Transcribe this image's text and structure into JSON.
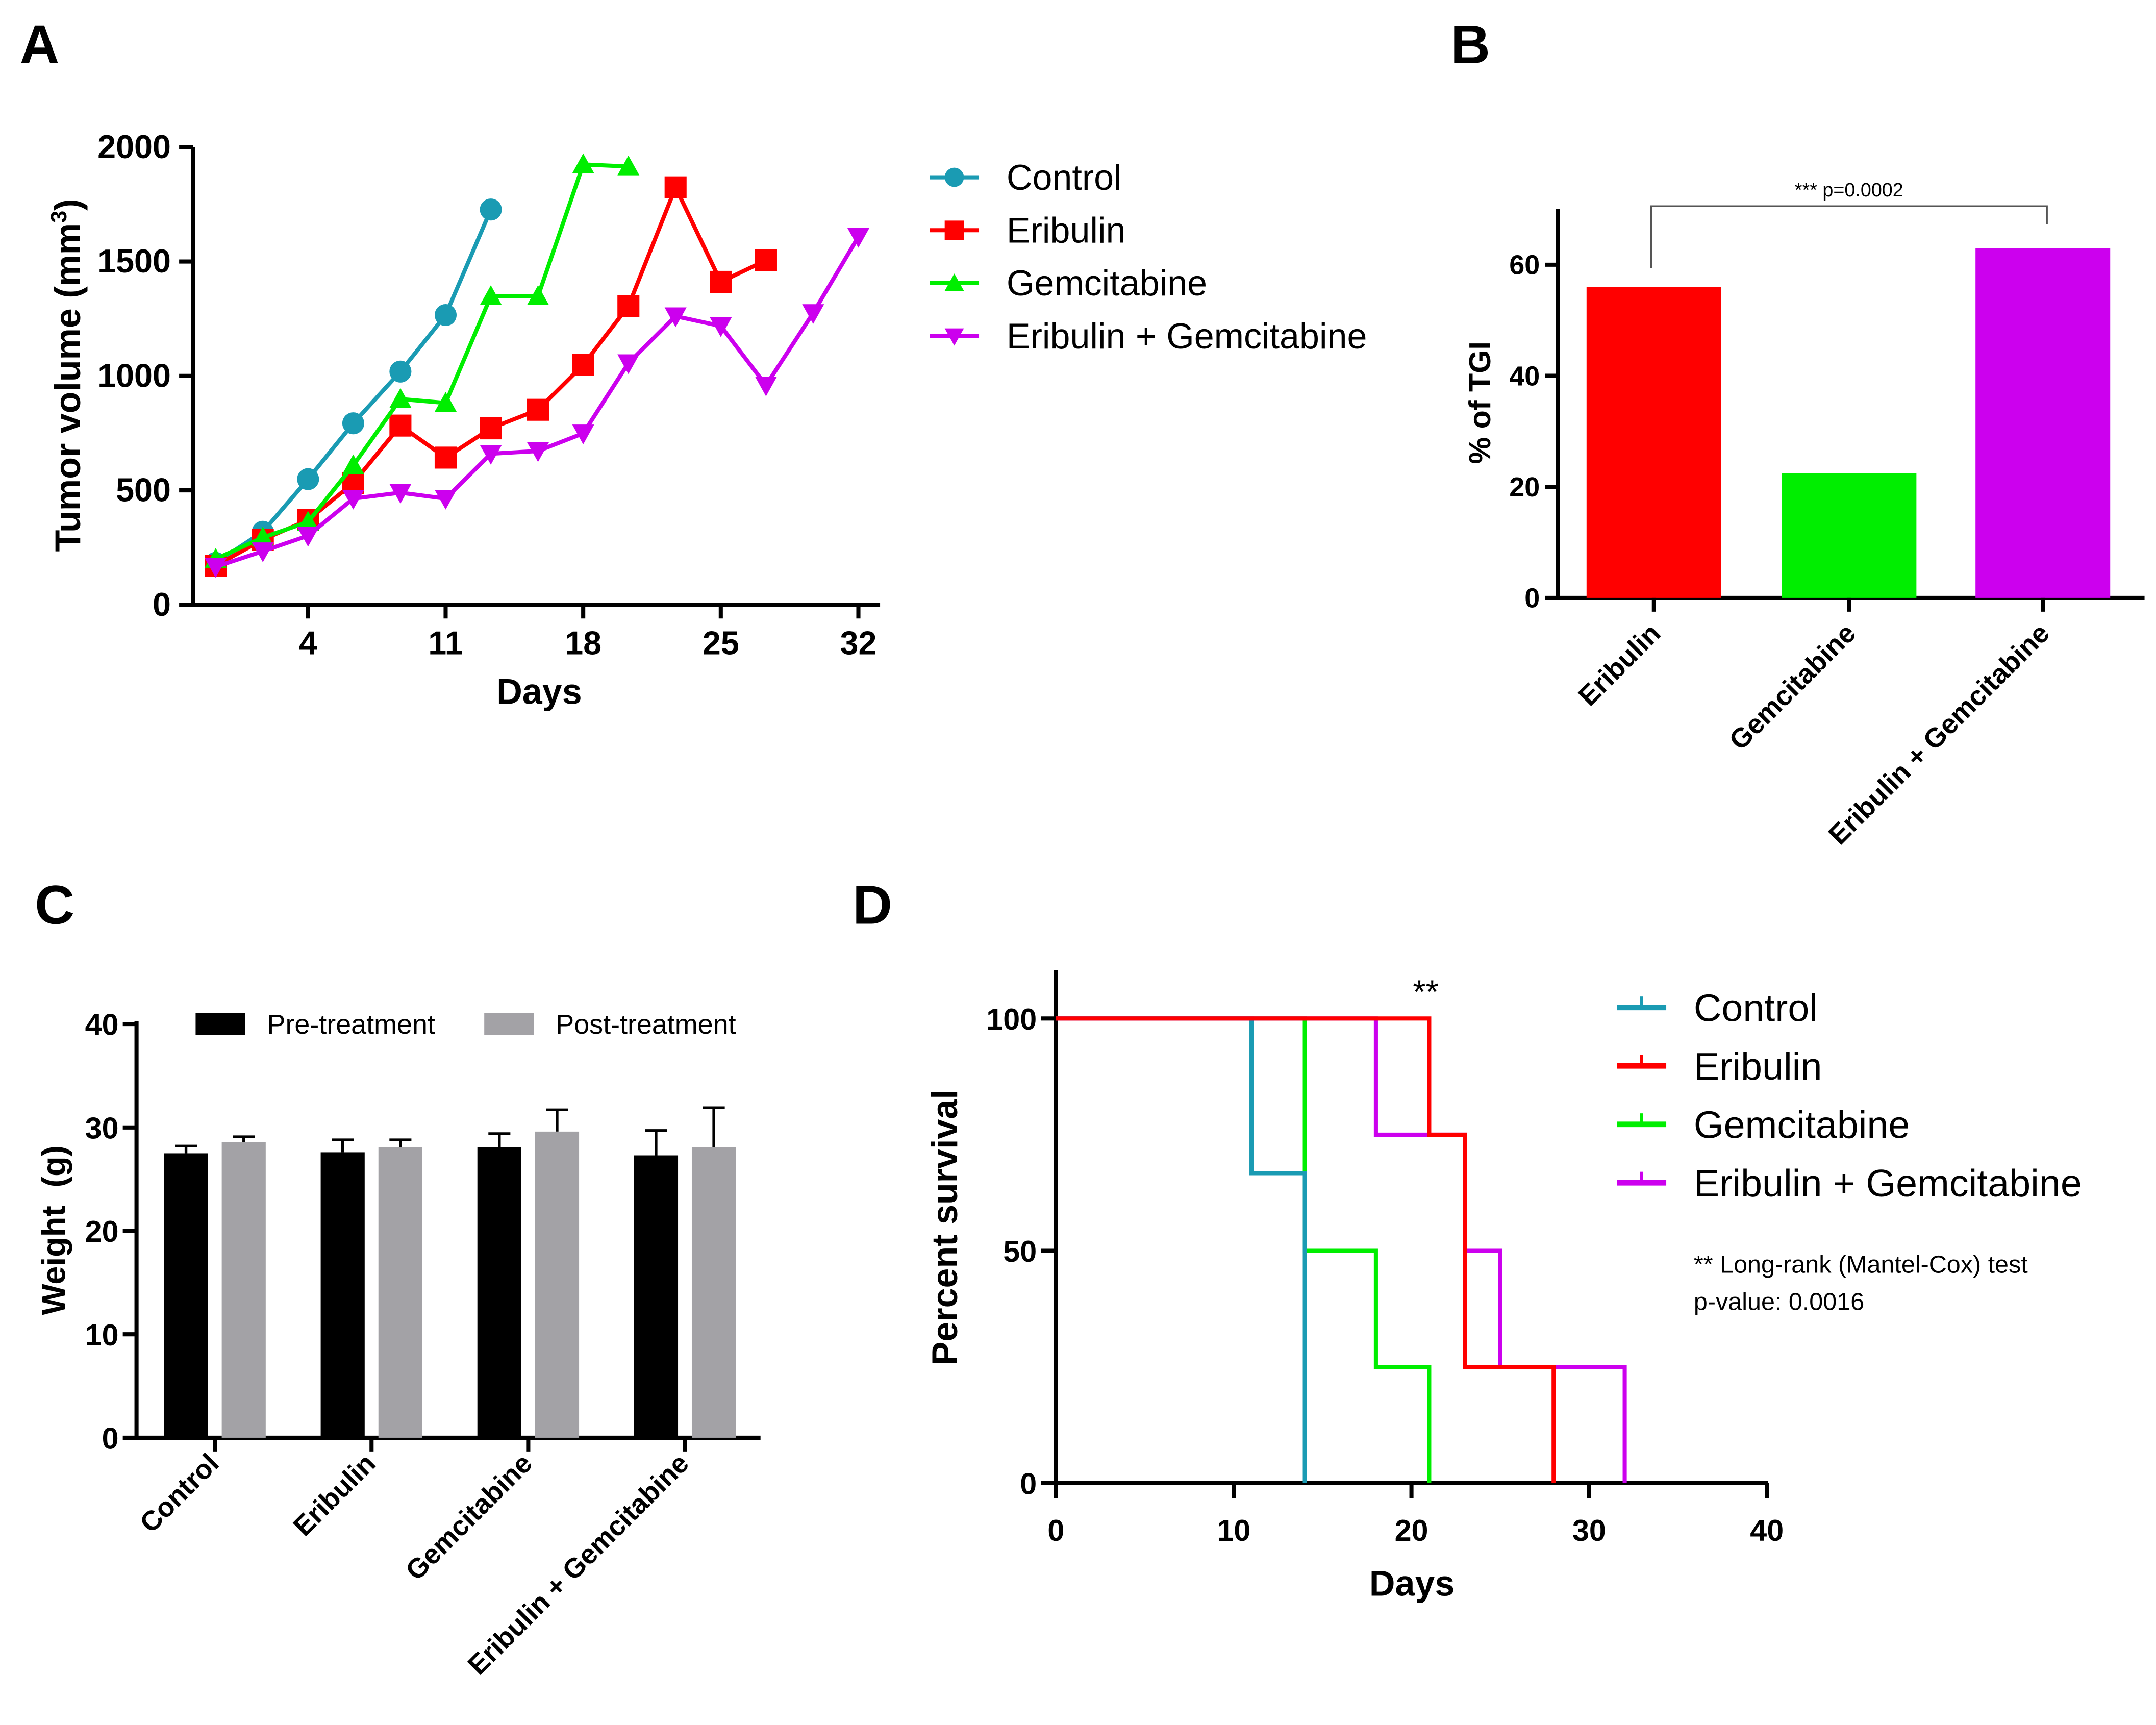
{
  "chart_data": [
    {
      "panel": "A",
      "type": "line",
      "xlabel": "Days",
      "ylabel": "Tumor volume (mm3)",
      "ylabel_main": "Tumor volume (mm",
      "ylabel_sup": "3",
      "ylabel_close": ")",
      "xticks": [
        "4",
        "11",
        "18",
        "25",
        "32"
      ],
      "yticks": [
        "0",
        "500",
        "1000",
        "1500",
        "2000"
      ],
      "ylim": [
        0,
        2000
      ],
      "xlim": [
        -1.86,
        33.1
      ],
      "series": [
        {
          "name": "Control",
          "color": "#1a9bb3",
          "marker": "circle",
          "x": [
            -0.7,
            1.7,
            4,
            6.3,
            8.7,
            11,
            13.3
          ],
          "values": [
            183,
            319,
            549,
            793,
            1019,
            1266,
            1727
          ]
        },
        {
          "name": "Eribulin",
          "color": "#ff0000",
          "marker": "square",
          "x": [
            -0.7,
            1.7,
            4,
            6.3,
            8.7,
            11,
            13.3,
            15.7,
            18,
            20.3,
            22.7,
            25,
            27.3
          ],
          "values": [
            171,
            285,
            370,
            532,
            783,
            643,
            771,
            852,
            1048,
            1305,
            1824,
            1411,
            1505
          ]
        },
        {
          "name": "Gemcitabine",
          "color": "#00ee00",
          "marker": "triangle-up",
          "x": [
            -0.7,
            1.7,
            4,
            6.3,
            8.7,
            11,
            13.3,
            15.7,
            18,
            20.3
          ],
          "values": [
            200,
            294,
            362,
            609,
            899,
            882,
            1348,
            1348,
            1924,
            1915
          ]
        },
        {
          "name": "Eribulin + Gemcitabine",
          "color": "#cc00ee",
          "marker": "triangle-down",
          "x": [
            -0.7,
            1.7,
            4,
            6.3,
            8.7,
            11,
            13.3,
            15.7,
            18,
            20.3,
            22.7,
            25,
            27.3,
            29.7,
            32
          ],
          "values": [
            166,
            234,
            302,
            464,
            490,
            464,
            660,
            672,
            749,
            1056,
            1261,
            1218,
            959,
            1275,
            1608
          ]
        }
      ],
      "legend": "right"
    },
    {
      "panel": "B",
      "type": "bar",
      "ylabel": "% of TGI",
      "categories": [
        "Eribulin",
        "Gemcitabine",
        "Eribulin + Gemcitabine"
      ],
      "values": [
        56,
        22.5,
        63
      ],
      "colors": [
        "#ff0000",
        "#00ee00",
        "#cc00ee"
      ],
      "yticks": [
        "0",
        "20",
        "40",
        "60"
      ],
      "ylim": [
        0,
        70
      ],
      "annotation": "*** p=0.0002"
    },
    {
      "panel": "C",
      "type": "bar",
      "ylabel": "Weight  (g)",
      "categories": [
        "Control",
        "Eribulin",
        "Gemcitabine",
        "Eribulin + Gemcitabine"
      ],
      "series": [
        {
          "name": "Pre-treatment",
          "color": "#000000",
          "values": [
            27.5,
            27.6,
            28.1,
            27.3
          ],
          "errors": [
            0.7,
            1.2,
            1.3,
            2.4
          ]
        },
        {
          "name": "Post-treatment",
          "color": "#a3a2a6",
          "values": [
            28.6,
            28.1,
            29.6,
            28.1
          ],
          "errors": [
            0.5,
            0.7,
            2.1,
            3.8
          ]
        }
      ],
      "yticks": [
        "0",
        "10",
        "20",
        "30",
        "40"
      ],
      "ylim": [
        0,
        40
      ],
      "legend": "top"
    },
    {
      "panel": "D",
      "type": "line",
      "subtype": "kaplan-meier",
      "xlabel": "Days",
      "ylabel": "Percent survival",
      "xticks": [
        "0",
        "10",
        "20",
        "30",
        "40"
      ],
      "yticks": [
        "0",
        "50",
        "100"
      ],
      "xlim": [
        0,
        40
      ],
      "ylim": [
        0,
        110
      ],
      "series": [
        {
          "name": "Control",
          "color": "#1a9bb3",
          "x": [
            0,
            11,
            14
          ],
          "values": [
            100,
            66.7,
            0
          ]
        },
        {
          "name": "Eribulin",
          "color": "#ff0000",
          "x": [
            0,
            21,
            23,
            28
          ],
          "values": [
            100,
            75,
            25,
            0
          ]
        },
        {
          "name": "Gemcitabine",
          "color": "#00ee00",
          "x": [
            0,
            14,
            18,
            21
          ],
          "values": [
            100,
            50,
            25,
            0
          ]
        },
        {
          "name": "Eribulin + Gemcitabine",
          "color": "#cc00ee",
          "x": [
            0,
            18,
            23,
            25,
            32
          ],
          "values": [
            100,
            75,
            50,
            25,
            0
          ]
        }
      ],
      "significance": "**",
      "note_line1": "** Long-rank (Mantel-Cox) test",
      "note_line2": "p-value: 0.0016",
      "legend": "right"
    }
  ],
  "panel_labels": [
    "A",
    "B",
    "C",
    "D"
  ]
}
